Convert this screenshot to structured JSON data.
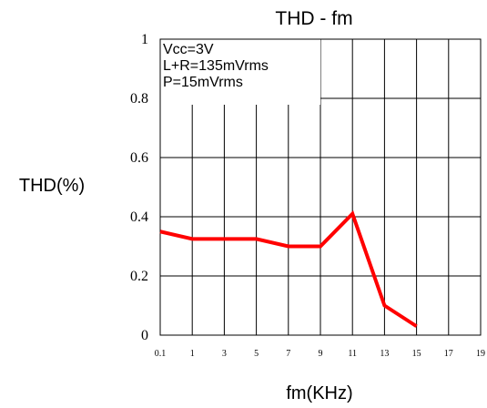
{
  "chart_data": {
    "type": "line",
    "title": "THD  -  fm",
    "xlabel": "fm(KHz)",
    "ylabel": "THD(%)",
    "x_tick_labels": [
      "0.1",
      "1",
      "3",
      "5",
      "7",
      "9",
      "11",
      "13",
      "15",
      "17",
      "19"
    ],
    "y_tick_labels": [
      "0",
      "0.2",
      "0.4",
      "0.6",
      "0.8",
      "1"
    ],
    "ylim": [
      0,
      1
    ],
    "grid": true,
    "annotations": [
      "Vcc=3V",
      "L+R=135mVrms",
      "P=15mVrms"
    ],
    "series": [
      {
        "color": "#ff0000",
        "x": [
          "0.1",
          "1",
          "3",
          "5",
          "7",
          "9",
          "11",
          "13",
          "15"
        ],
        "values": [
          0.35,
          0.325,
          0.325,
          0.325,
          0.3,
          0.3,
          0.41,
          0.1,
          0.03
        ]
      }
    ]
  }
}
